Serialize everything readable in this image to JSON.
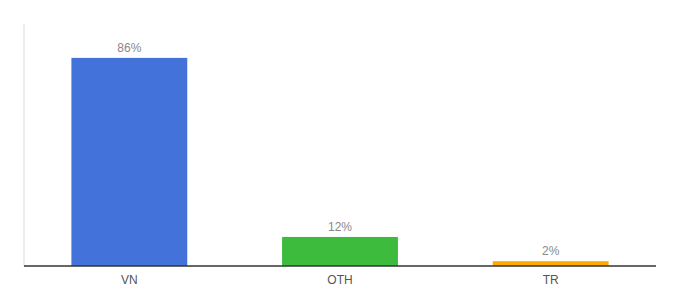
{
  "chart_data": {
    "type": "bar",
    "categories": [
      "VN",
      "OTH",
      "TR"
    ],
    "values": [
      86,
      12,
      2
    ],
    "value_labels": [
      "86%",
      "12%",
      "2%"
    ],
    "colors": [
      "#4472db",
      "#3dbb3d",
      "#ffaa00"
    ],
    "ylim": [
      0,
      100
    ],
    "yticks": [],
    "grid": false,
    "data_labels": true,
    "tick_labels": "x"
  }
}
